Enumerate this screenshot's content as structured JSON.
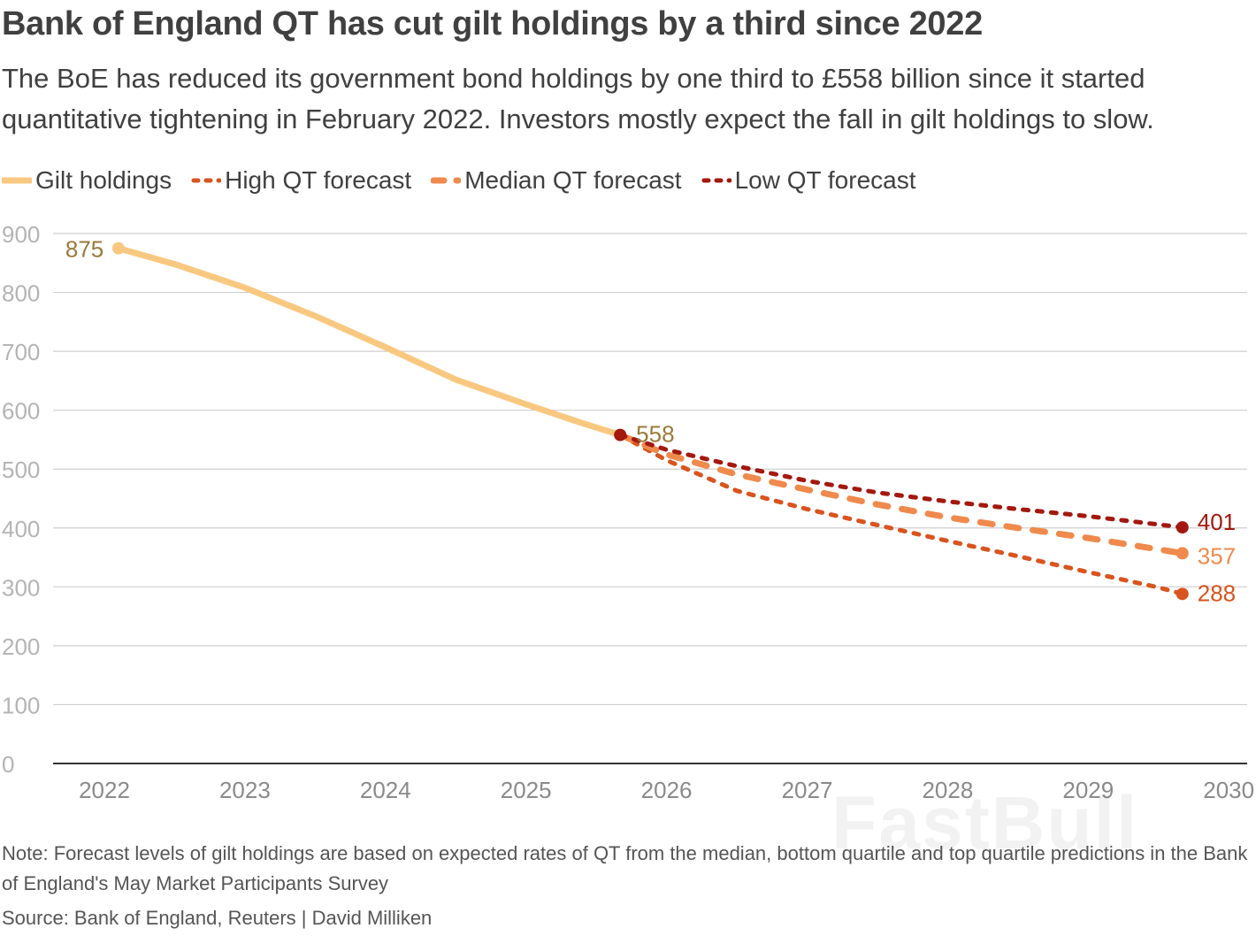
{
  "title": "Bank of England QT has cut gilt holdings by a third since 2022",
  "subtitle": "The BoE has reduced its government bond holdings by one third to £558 billion since it started quantitative tightening in February 2022. Investors mostly expect the fall in gilt holdings to slow.",
  "legend": [
    {
      "label": "Gilt holdings",
      "color": "#f9c880",
      "style": "solid"
    },
    {
      "label": "High QT forecast",
      "color": "#d9541e",
      "style": "dotted"
    },
    {
      "label": "Median QT forecast",
      "color": "#ef8a4c",
      "style": "dashed"
    },
    {
      "label": "Low QT forecast",
      "color": "#a3180f",
      "style": "dotted"
    }
  ],
  "note": "Note: Forecast levels of gilt holdings are based on expected rates of QT from the median, bottom quartile and top quartile predictions in the Bank of England's May Market Participants Survey",
  "source": "Source: Bank of England, Reuters | David Milliken",
  "watermark": "FastBull",
  "chart_data": {
    "type": "line",
    "title": "Bank of England QT has cut gilt holdings by a third since 2022",
    "xlabel": "",
    "ylabel": "",
    "xlim": [
      2021.65,
      2030
    ],
    "ylim": [
      0,
      900
    ],
    "xticks": [
      2022,
      2023,
      2024,
      2025,
      2026,
      2027,
      2028,
      2029,
      2030
    ],
    "yticks": [
      0,
      100,
      200,
      300,
      400,
      500,
      600,
      700,
      800,
      900
    ],
    "grid": true,
    "legend_position": "top-left",
    "series": [
      {
        "name": "Gilt holdings",
        "color": "#f9c880",
        "style": "solid",
        "x": [
          2022.1,
          2022.5,
          2023.0,
          2023.5,
          2024.0,
          2024.5,
          2025.0,
          2025.4,
          2025.67
        ],
        "y": [
          875,
          848,
          808,
          760,
          707,
          652,
          610,
          578,
          558
        ],
        "end_labels": [
          {
            "x": 2022.1,
            "y": 875,
            "text": "875"
          },
          {
            "x": 2025.67,
            "y": 558,
            "text": "558"
          }
        ]
      },
      {
        "name": "High QT forecast",
        "color": "#d9541e",
        "style": "dotted",
        "x": [
          2025.67,
          2026.0,
          2026.5,
          2027.0,
          2027.5,
          2028.0,
          2028.5,
          2029.0,
          2029.5,
          2029.67
        ],
        "y": [
          558,
          515,
          463,
          432,
          405,
          378,
          352,
          325,
          299,
          288
        ],
        "end_labels": [
          {
            "x": 2029.67,
            "y": 288,
            "text": "288"
          }
        ]
      },
      {
        "name": "Median QT forecast",
        "color": "#ef8a4c",
        "style": "dashed",
        "x": [
          2025.67,
          2026.0,
          2026.5,
          2027.0,
          2027.5,
          2028.0,
          2028.5,
          2029.0,
          2029.67
        ],
        "y": [
          558,
          525,
          491,
          465,
          440,
          418,
          400,
          383,
          357
        ],
        "end_labels": [
          {
            "x": 2029.67,
            "y": 357,
            "text": "357"
          }
        ]
      },
      {
        "name": "Low QT forecast",
        "color": "#a3180f",
        "style": "dotted",
        "x": [
          2025.67,
          2026.0,
          2026.5,
          2027.0,
          2027.5,
          2028.0,
          2028.5,
          2029.0,
          2029.67
        ],
        "y": [
          558,
          533,
          505,
          480,
          460,
          445,
          432,
          420,
          401
        ],
        "end_labels": [
          {
            "x": 2029.67,
            "y": 401,
            "text": "401"
          }
        ]
      }
    ]
  }
}
